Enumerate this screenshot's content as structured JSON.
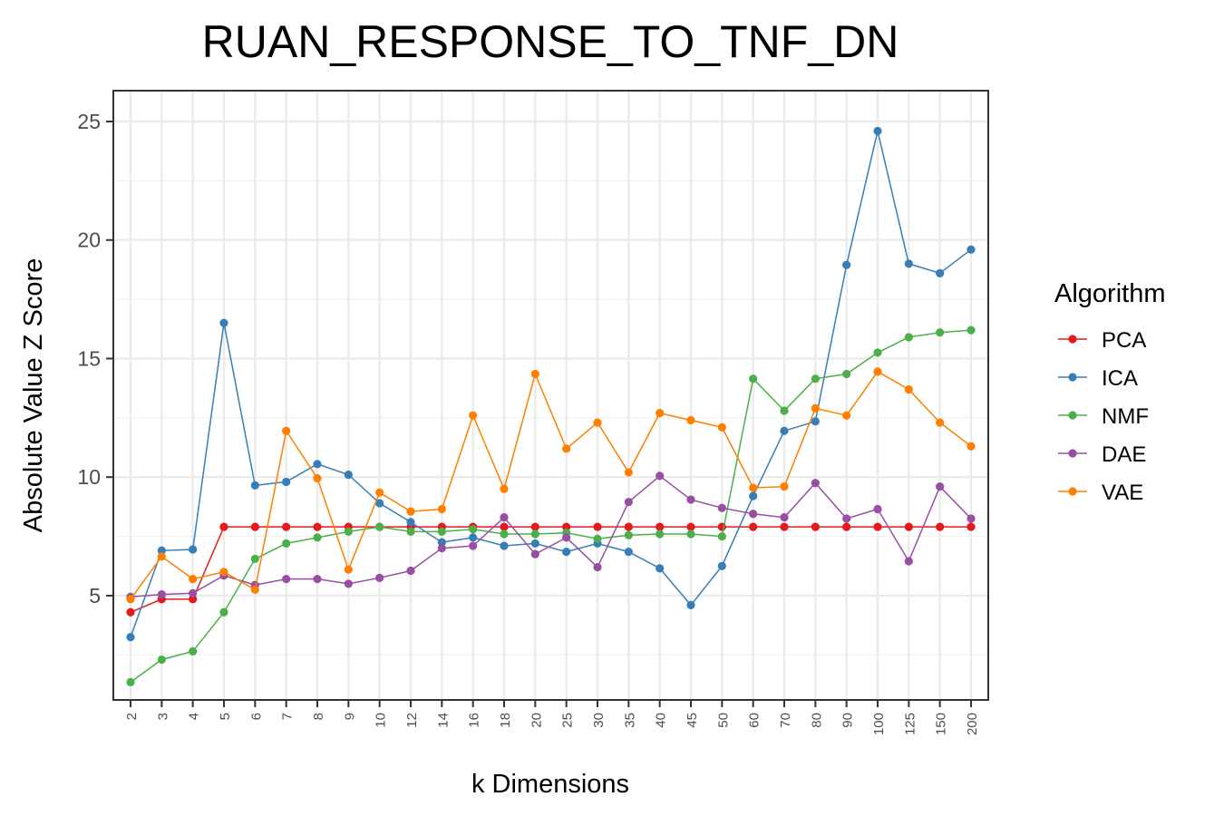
{
  "chart_data": {
    "type": "line",
    "title": "RUAN_RESPONSE_TO_TNF_DN",
    "xlabel": "k Dimensions",
    "ylabel": "Absolute Value Z Score",
    "categories": [
      "2",
      "3",
      "4",
      "5",
      "6",
      "7",
      "8",
      "9",
      "10",
      "12",
      "14",
      "16",
      "18",
      "20",
      "25",
      "30",
      "35",
      "40",
      "45",
      "50",
      "60",
      "70",
      "80",
      "90",
      "100",
      "125",
      "150",
      "200"
    ],
    "yticks": [
      5,
      10,
      15,
      20,
      25
    ],
    "ylim": [
      0.6,
      26.3
    ],
    "grid": true,
    "legend": {
      "title": "Algorithm",
      "position": "right"
    },
    "series": [
      {
        "name": "PCA",
        "color": "#e41a1c",
        "values": [
          4.3,
          4.85,
          4.85,
          7.9,
          7.9,
          7.9,
          7.9,
          7.9,
          7.9,
          7.9,
          7.9,
          7.9,
          7.9,
          7.9,
          7.9,
          7.9,
          7.9,
          7.9,
          7.9,
          7.9,
          7.9,
          7.9,
          7.9,
          7.9,
          7.9,
          7.9,
          7.9,
          7.9
        ]
      },
      {
        "name": "ICA",
        "color": "#377eb8",
        "values": [
          3.25,
          6.9,
          6.95,
          16.5,
          9.65,
          9.8,
          10.55,
          10.1,
          8.9,
          8.1,
          7.25,
          7.45,
          7.1,
          7.2,
          6.85,
          7.2,
          6.85,
          6.15,
          4.6,
          6.25,
          9.2,
          11.95,
          12.35,
          18.95,
          24.6,
          19.0,
          18.6,
          19.6
        ]
      },
      {
        "name": "NMF",
        "color": "#4daf4a",
        "values": [
          1.35,
          2.3,
          2.65,
          4.3,
          6.55,
          7.2,
          7.45,
          7.7,
          7.9,
          7.7,
          7.7,
          7.8,
          7.6,
          7.6,
          7.65,
          7.4,
          7.55,
          7.6,
          7.6,
          7.5,
          14.15,
          12.8,
          14.15,
          14.35,
          15.25,
          15.9,
          16.1,
          16.2
        ]
      },
      {
        "name": "DAE",
        "color": "#984ea3",
        "values": [
          4.95,
          5.05,
          5.1,
          5.85,
          5.45,
          5.7,
          5.7,
          5.5,
          5.75,
          6.05,
          7.0,
          7.1,
          8.3,
          6.75,
          7.45,
          6.2,
          8.95,
          10.05,
          9.05,
          8.7,
          8.45,
          8.3,
          9.75,
          8.25,
          8.65,
          6.45,
          9.6,
          8.25
        ]
      },
      {
        "name": "VAE",
        "color": "#ff7f00",
        "values": [
          4.85,
          6.65,
          5.7,
          6.0,
          5.25,
          11.95,
          9.95,
          6.1,
          9.35,
          8.55,
          8.65,
          12.6,
          9.5,
          14.35,
          11.2,
          12.3,
          10.2,
          12.7,
          12.4,
          12.1,
          9.55,
          9.6,
          12.9,
          12.6,
          14.45,
          13.7,
          12.3,
          11.3
        ]
      }
    ]
  }
}
